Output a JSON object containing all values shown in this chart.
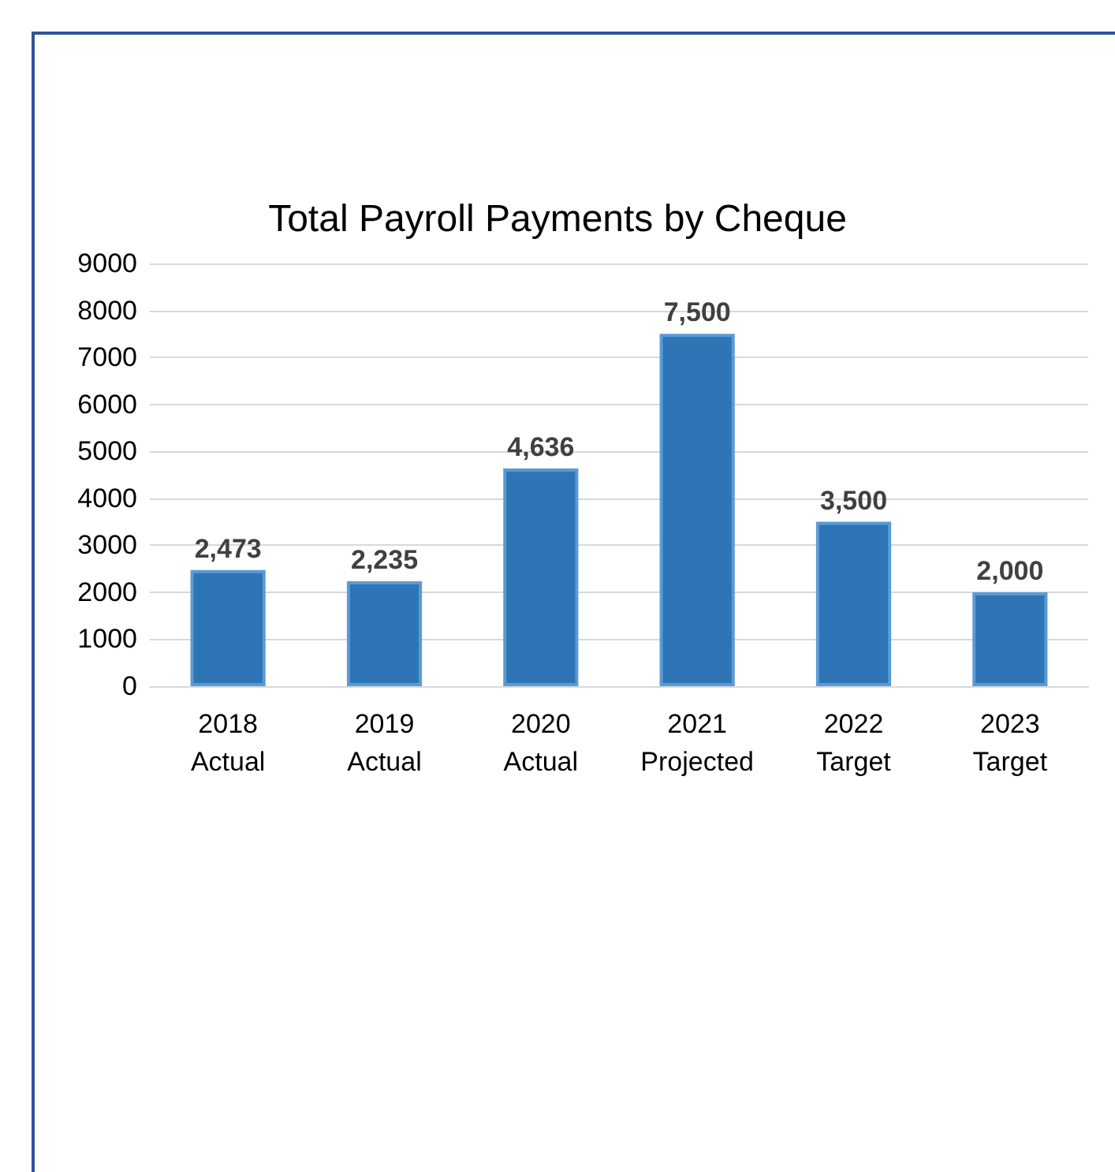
{
  "chart_data": {
    "type": "bar",
    "title": "Total Payroll Payments by Cheque",
    "categories": [
      "2018\nActual",
      "2019\nActual",
      "2020\nActual",
      "2021\nProjected",
      "2022\nTarget",
      "2023\nTarget"
    ],
    "values": [
      2473,
      2235,
      4636,
      7500,
      3500,
      2000
    ],
    "value_labels": [
      "2,473",
      "2,235",
      "4,636",
      "7,500",
      "3,500",
      "2,000"
    ],
    "color": "#2e75b6",
    "ylim": [
      0,
      9000
    ],
    "yticks": [
      0,
      1000,
      2000,
      3000,
      4000,
      5000,
      6000,
      7000,
      8000,
      9000
    ],
    "grid": "y"
  }
}
